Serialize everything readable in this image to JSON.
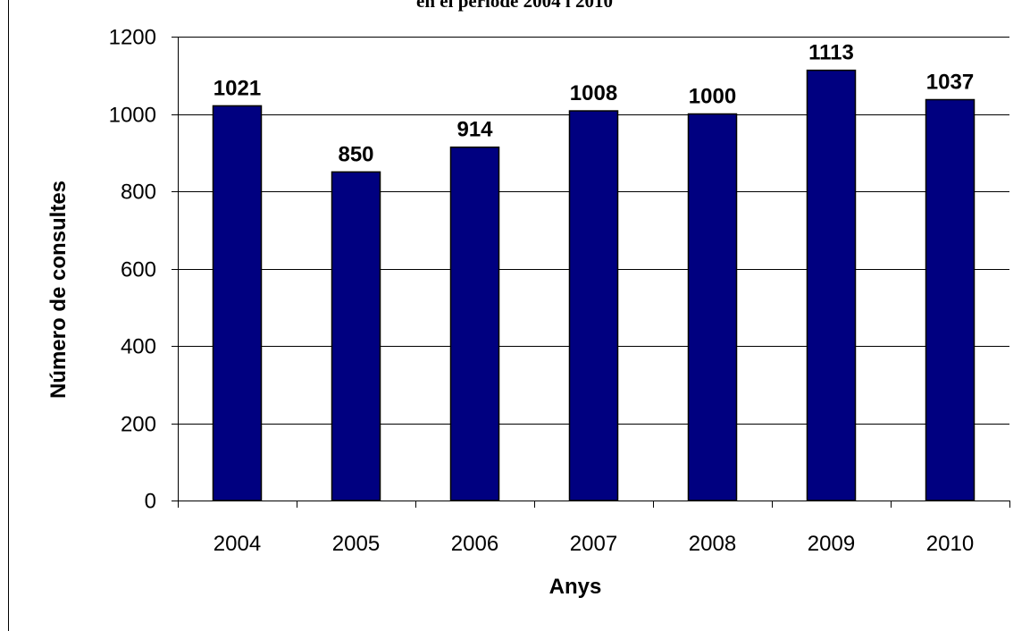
{
  "chart_data": {
    "type": "bar",
    "title": "en el període 2004 i 2010",
    "xlabel": "Anys",
    "ylabel": "Número de consultes",
    "categories": [
      "2004",
      "2005",
      "2006",
      "2007",
      "2008",
      "2009",
      "2010"
    ],
    "values": [
      1021,
      850,
      914,
      1008,
      1000,
      1113,
      1037
    ],
    "ylim": [
      0,
      1200
    ],
    "yticks": [
      "0",
      "200",
      "400",
      "600",
      "800",
      "1000",
      "1200"
    ],
    "data_labels": [
      "1021",
      "850",
      "914",
      "1008",
      "1000",
      "1113",
      "1037"
    ],
    "grid": true,
    "legend": "none",
    "bar_color": "#000080",
    "bar_edge_color": "#000000",
    "grid_color": "#000000"
  }
}
